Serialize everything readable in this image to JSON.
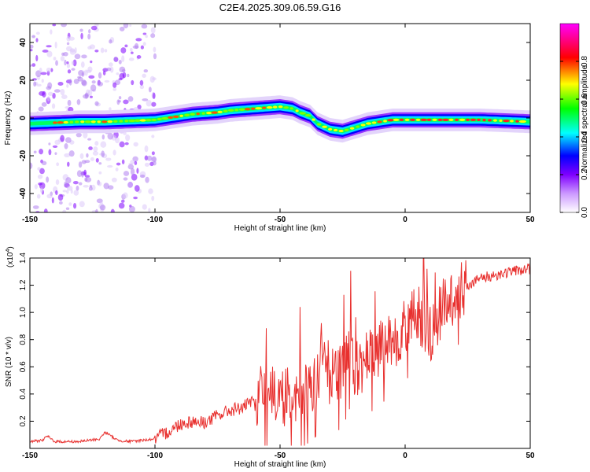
{
  "chart_data": [
    {
      "type": "heatmap",
      "title": "C2E4.2025.309.06.59.G16",
      "xlabel": "Height of straight line (km)",
      "ylabel": "Frequency (Hz)",
      "xlim": [
        -150,
        50
      ],
      "ylim": [
        -50,
        50
      ],
      "x_ticks": [
        "-150",
        "-100",
        "-50",
        "0",
        "50"
      ],
      "y_ticks": [
        "-40",
        "-20",
        "0",
        "20",
        "40"
      ],
      "colorbar": {
        "label": "Normalized spectral amplitude",
        "range": [
          0,
          1
        ],
        "ticks": [
          "0.0",
          "0.2",
          "0.4",
          "0.6",
          "0.8"
        ],
        "colors": [
          "#ffffff",
          "#cc99ff",
          "#7f00ff",
          "#0000ff",
          "#00ffff",
          "#00ff00",
          "#ffff00",
          "#ff0000",
          "#ff00ff"
        ]
      },
      "ridge_frequency": {
        "x": [
          -150,
          -140,
          -130,
          -120,
          -110,
          -100,
          -95,
          -90,
          -85,
          -80,
          -75,
          -70,
          -65,
          -60,
          -55,
          -50,
          -45,
          -42,
          -38,
          -35,
          -30,
          -25,
          -20,
          -15,
          -10,
          -5,
          0,
          10,
          20,
          30,
          40,
          50
        ],
        "y": [
          -3,
          -2.5,
          -2,
          -2,
          -1.5,
          -1,
          0,
          1,
          2,
          2.5,
          3,
          4,
          4.5,
          5,
          5.5,
          6,
          5,
          3,
          1,
          -3,
          -6,
          -7,
          -5,
          -3,
          -2,
          -1,
          -1,
          -1,
          -1,
          -1,
          -1.5,
          -2
        ]
      },
      "scatter_region_x": [
        -150,
        -100
      ]
    },
    {
      "type": "line",
      "title": "",
      "xlabel": "Height of straight line (km)",
      "ylabel": "SNR (10 * v/v)",
      "y_multiplier": "(x10",
      "y_multiplier_exp": "4",
      "y_multiplier_close": ")",
      "xlim": [
        -150,
        50
      ],
      "ylim": [
        0,
        1.4
      ],
      "x_ticks": [
        "-150",
        "-100",
        "-50",
        "0",
        "50"
      ],
      "y_ticks": [
        "0.2",
        "0.4",
        "0.6",
        "0.8",
        "1.0",
        "1.2",
        "1.4"
      ],
      "color": "#e8302e",
      "series": [
        {
          "x": [
            -150,
            -145,
            -143,
            -140,
            -130,
            -122,
            -120,
            -115,
            -110,
            -105,
            -100,
            -95,
            -90,
            -85,
            -80,
            -75,
            -70,
            -65,
            -60,
            -55,
            -50,
            -45,
            -40,
            -35,
            -33,
            -30,
            -25,
            -22,
            -20,
            -15,
            -10,
            -5,
            0,
            5,
            10,
            15,
            20,
            25,
            30,
            35,
            40,
            45,
            50
          ],
          "y": [
            0.05,
            0.06,
            0.09,
            0.05,
            0.05,
            0.07,
            0.12,
            0.06,
            0.05,
            0.06,
            0.07,
            0.12,
            0.18,
            0.2,
            0.19,
            0.24,
            0.28,
            0.3,
            0.35,
            0.42,
            0.36,
            0.4,
            0.42,
            0.5,
            0.8,
            0.5,
            0.55,
            0.7,
            0.55,
            0.65,
            0.72,
            0.8,
            0.9,
            0.98,
            0.85,
            1.02,
            1.15,
            1.2,
            1.25,
            1.27,
            1.29,
            1.31,
            1.32
          ]
        }
      ]
    }
  ]
}
